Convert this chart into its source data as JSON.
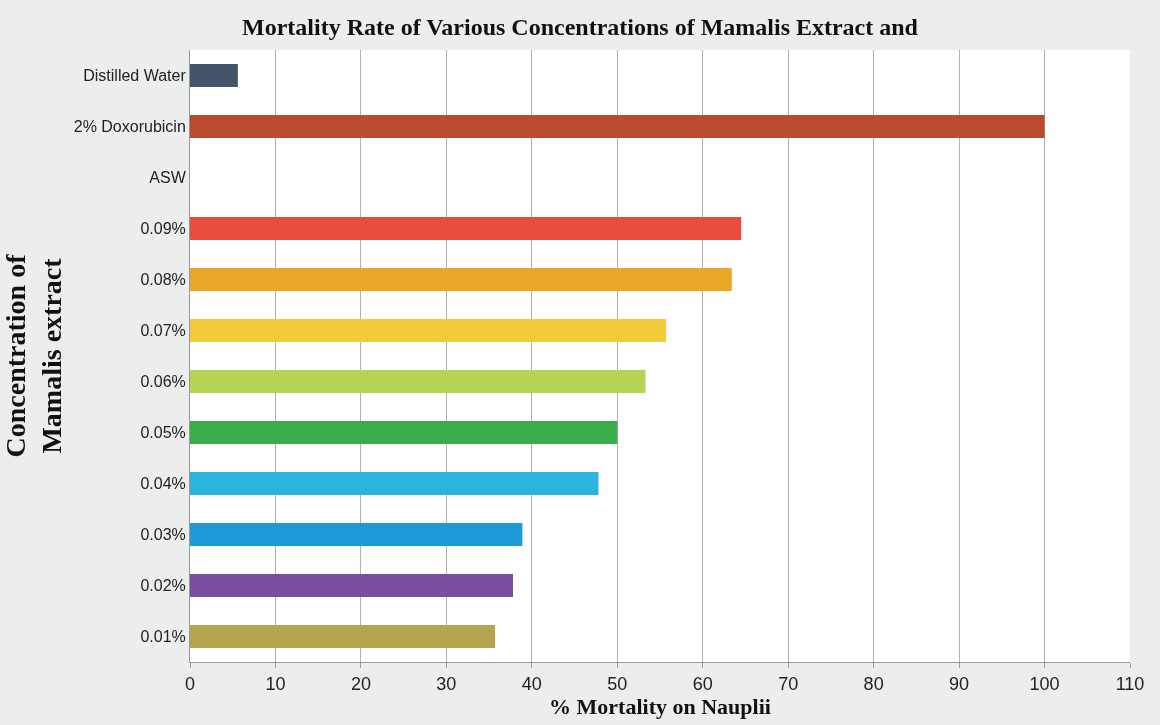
{
  "chart_data": {
    "type": "bar",
    "orientation": "horizontal",
    "title": "Mortality Rate of Various Concentrations of Mamalis Extract and",
    "xlabel": "% Mortality on Nauplii",
    "ylabel": "Concentration of\nMamalis extract",
    "categories": [
      "Distilled Water",
      "2% Doxorubicin",
      "ASW",
      "0.09%",
      "0.08%",
      "0.07%",
      "0.06%",
      "0.05%",
      "0.04%",
      "0.03%",
      "0.02%",
      "0.01%"
    ],
    "values": [
      5.6,
      100,
      0,
      64.5,
      63.4,
      55.7,
      53.3,
      50,
      47.8,
      38.9,
      37.8,
      35.7
    ],
    "colors": [
      "#44546a",
      "#b84a2e",
      "#e84c3d",
      "#e84c3d",
      "#e8a727",
      "#f1cb3a",
      "#b4d455",
      "#3aad4a",
      "#2bb5de",
      "#1e9ad6",
      "#7b4fa0",
      "#b5a550"
    ],
    "xlim": [
      0,
      110
    ],
    "xticks": [
      0,
      10,
      20,
      30,
      40,
      50,
      60,
      70,
      80,
      90,
      100,
      110
    ],
    "grid": "x",
    "legend": false
  }
}
